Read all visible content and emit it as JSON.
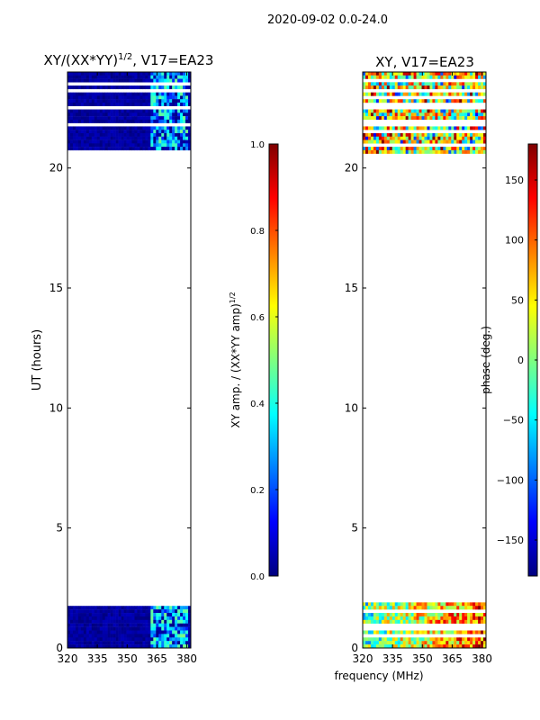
{
  "figure": {
    "suptitle": "2020-09-02 0.0-24.0"
  },
  "colors": {
    "jet": [
      "#00007f",
      "#0000ff",
      "#007fff",
      "#00ffff",
      "#7fff7f",
      "#ffff00",
      "#ff7f00",
      "#ff0000",
      "#7f0000"
    ],
    "blank": "#ffffff",
    "frame": "#000000"
  },
  "chart_data": [
    {
      "type": "heatmap",
      "title_prefix": "XY/(XX*YY)",
      "title_exponent": "1/2",
      "title_suffix": ", V17=EA23",
      "xlabel": "",
      "ylabel": "UT (hours)",
      "xlim": [
        320,
        382
      ],
      "ylim": [
        0,
        24
      ],
      "xticks": [
        320,
        335,
        350,
        365,
        380
      ],
      "yticks": [
        0,
        5,
        10,
        15,
        20
      ],
      "data_bands_hours": [
        [
          0,
          1.9
        ],
        [
          20.6,
          24
        ]
      ],
      "colorbar": {
        "label_prefix": "XY amp. / (XX*YY amp)",
        "label_exponent": "1/2",
        "range": [
          0,
          1
        ],
        "ticks": [
          "0.0",
          "0.2",
          "0.4",
          "0.6",
          "0.8",
          "1.0"
        ]
      }
    },
    {
      "type": "heatmap",
      "title": "XY, V17=EA23",
      "xlabel": "frequency (MHz)",
      "ylabel": "",
      "xlim": [
        320,
        382
      ],
      "ylim": [
        0,
        24
      ],
      "xticks": [
        320,
        335,
        350,
        365,
        380
      ],
      "yticks": [
        0,
        5,
        10,
        15,
        20
      ],
      "data_bands_hours": [
        [
          0,
          1.9
        ],
        [
          20.6,
          24
        ]
      ],
      "colorbar": {
        "label": "phase (deg.)",
        "range": [
          -180,
          180
        ],
        "ticks": [
          "−150",
          "−100",
          "−50",
          "0",
          "50",
          "100",
          "150"
        ]
      }
    }
  ]
}
